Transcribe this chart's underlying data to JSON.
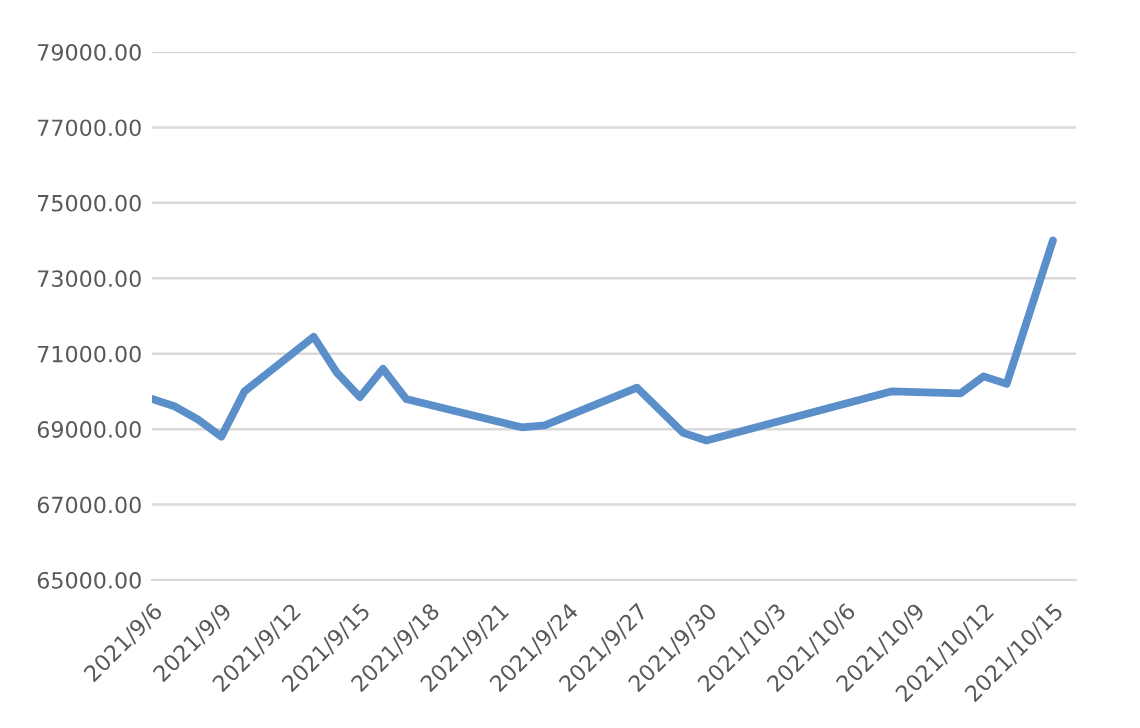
{
  "chart_data": {
    "type": "line",
    "x": [
      "2021-09-06",
      "2021-09-07",
      "2021-09-08",
      "2021-09-09",
      "2021-09-10",
      "2021-09-13",
      "2021-09-14",
      "2021-09-15",
      "2021-09-16",
      "2021-09-17",
      "2021-09-22",
      "2021-09-23",
      "2021-09-27",
      "2021-09-29",
      "2021-09-30",
      "2021-10-08",
      "2021-10-11",
      "2021-10-12",
      "2021-10-13",
      "2021-10-15"
    ],
    "series": [
      {
        "color": "#5b8fc9",
        "values": [
          69800,
          69600,
          69250,
          68800,
          70000,
          71450,
          70500,
          69850,
          70600,
          69800,
          69050,
          69100,
          70100,
          68900,
          68700,
          70000,
          69950,
          70400,
          70200,
          74000
        ]
      }
    ],
    "xlim": [
      "2021-09-06",
      "2021-10-16"
    ],
    "xticks": [
      {
        "value": "2021-09-06",
        "label": "2021/9/6"
      },
      {
        "value": "2021-09-09",
        "label": "2021/9/9"
      },
      {
        "value": "2021-09-12",
        "label": "2021/9/12"
      },
      {
        "value": "2021-09-15",
        "label": "2021/9/15"
      },
      {
        "value": "2021-09-18",
        "label": "2021/9/18"
      },
      {
        "value": "2021-09-21",
        "label": "2021/9/21"
      },
      {
        "value": "2021-09-24",
        "label": "2021/9/24"
      },
      {
        "value": "2021-09-27",
        "label": "2021/9/27"
      },
      {
        "value": "2021-09-30",
        "label": "2021/9/30"
      },
      {
        "value": "2021-10-03",
        "label": "2021/10/3"
      },
      {
        "value": "2021-10-06",
        "label": "2021/10/6"
      },
      {
        "value": "2021-10-09",
        "label": "2021/10/9"
      },
      {
        "value": "2021-10-12",
        "label": "2021/10/12"
      },
      {
        "value": "2021-10-15",
        "label": "2021/10/15"
      }
    ],
    "ylim": [
      65000,
      79000
    ],
    "yticks": [
      {
        "value": 65000,
        "label": "65000.00"
      },
      {
        "value": 67000,
        "label": "67000.00"
      },
      {
        "value": 69000,
        "label": "69000.00"
      },
      {
        "value": 71000,
        "label": "71000.00"
      },
      {
        "value": 73000,
        "label": "73000.00"
      },
      {
        "value": 75000,
        "label": "75000.00"
      },
      {
        "value": 77000,
        "label": "77000.00"
      },
      {
        "value": 79000,
        "label": "79000.00"
      }
    ],
    "grid": "y",
    "legend": false,
    "marker": "none",
    "line_style": "solid"
  }
}
